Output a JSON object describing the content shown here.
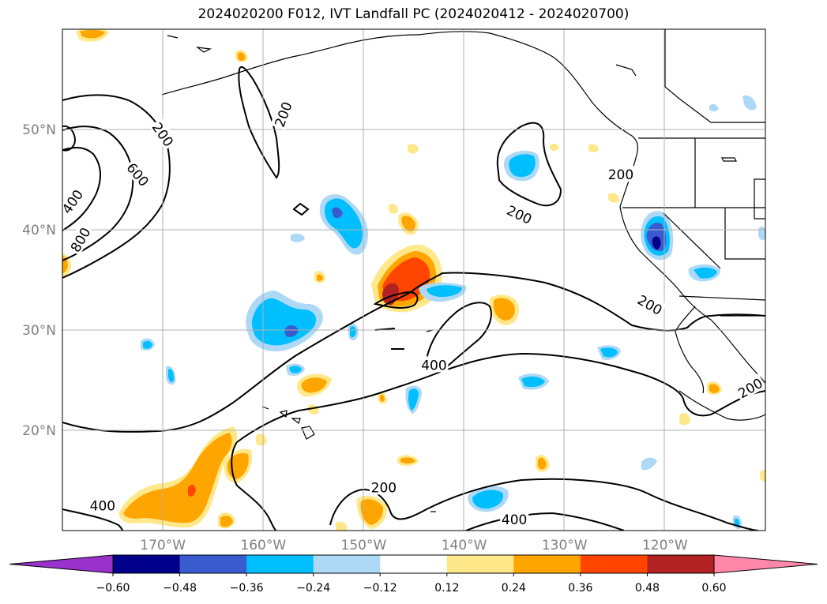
{
  "title": "2024020200 F012, IVT Landfall PC (2024020412 - 2024020700)",
  "map": {
    "region": "North Pacific / West coast of North America",
    "lon_range": [
      -180,
      -110
    ],
    "lat_range": [
      10,
      60
    ],
    "gridlines": true,
    "lon_ticks": [
      {
        "value": -170,
        "label": "170°W"
      },
      {
        "value": -160,
        "label": "160°W"
      },
      {
        "value": -150,
        "label": "150°W"
      },
      {
        "value": -140,
        "label": "140°W"
      },
      {
        "value": -130,
        "label": "130°W"
      },
      {
        "value": -120,
        "label": "120°W"
      }
    ],
    "lat_ticks": [
      {
        "value": 50,
        "label": "50°N"
      },
      {
        "value": 40,
        "label": "40°N"
      },
      {
        "value": 30,
        "label": "30°N"
      },
      {
        "value": 20,
        "label": "20°N"
      }
    ],
    "tick_color": "#808080"
  },
  "contour_labels": [
    {
      "text": "200",
      "lon": -158,
      "lat": 51.5,
      "angle": -70
    },
    {
      "text": "200",
      "lon": -170,
      "lat": 49.5,
      "angle": 55
    },
    {
      "text": "600",
      "lon": -172.5,
      "lat": 45.5,
      "angle": 50
    },
    {
      "text": "400",
      "lon": -179,
      "lat": 42.8,
      "angle": -55
    },
    {
      "text": "800",
      "lon": -178.2,
      "lat": 39,
      "angle": -60
    },
    {
      "text": "200",
      "lon": -134.5,
      "lat": 41.5,
      "angle": 25
    },
    {
      "text": "200",
      "lon": -124.4,
      "lat": 45.5,
      "angle": 0
    },
    {
      "text": "200",
      "lon": -121.5,
      "lat": 32.5,
      "angle": 30
    },
    {
      "text": "400",
      "lon": -143,
      "lat": 26.5,
      "angle": 0
    },
    {
      "text": "200",
      "lon": -111.5,
      "lat": 24.2,
      "angle": -30
    },
    {
      "text": "200",
      "lon": -148,
      "lat": 14.3,
      "angle": 0
    },
    {
      "text": "400",
      "lon": -135,
      "lat": 11.1,
      "angle": 0
    },
    {
      "text": "400",
      "lon": -176,
      "lat": 12.5,
      "angle": 0
    }
  ],
  "colorbar": {
    "ticks": [
      "−0.60",
      "−0.48",
      "−0.36",
      "−0.24",
      "−0.12",
      "0.12",
      "0.24",
      "0.36",
      "0.48",
      "0.60"
    ],
    "colors": {
      "under": "#9932cc",
      "bins": [
        "#00008b",
        "#3a5bd0",
        "#00bfff",
        "#add8f6",
        "#ffffff",
        "#ffe88a",
        "#ffa500",
        "#ff4500",
        "#b22222"
      ],
      "over": "#ff88aa"
    }
  },
  "colors": {
    "neg1": "#add8f6",
    "neg2": "#00bfff",
    "neg3": "#3a5bd0",
    "neg4": "#00008b",
    "pos1": "#ffe88a",
    "pos2": "#ffa500",
    "pos3": "#ff4500",
    "pos4": "#b22222"
  }
}
